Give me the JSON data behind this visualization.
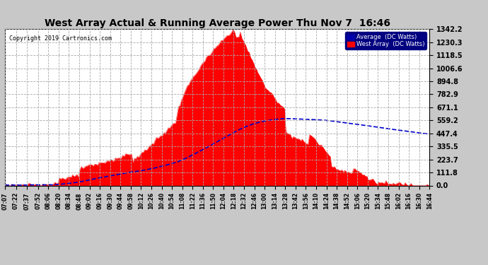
{
  "title": "West Array Actual & Running Average Power Thu Nov 7  16:46",
  "copyright": "Copyright 2019 Cartronics.com",
  "legend_avg": "Average  (DC Watts)",
  "legend_west": "West Array  (DC Watts)",
  "ymin": 0.0,
  "ymax": 1342.2,
  "yticks": [
    0.0,
    111.8,
    223.7,
    335.5,
    447.4,
    559.2,
    671.1,
    782.9,
    894.8,
    1006.6,
    1118.5,
    1230.3,
    1342.2
  ],
  "background_color": "#c8c8c8",
  "plot_bg_color": "#ffffff",
  "red_color": "#ff0000",
  "blue_color": "#0000cc",
  "title_color": "#000000",
  "grid_color": "#aaaaaa"
}
